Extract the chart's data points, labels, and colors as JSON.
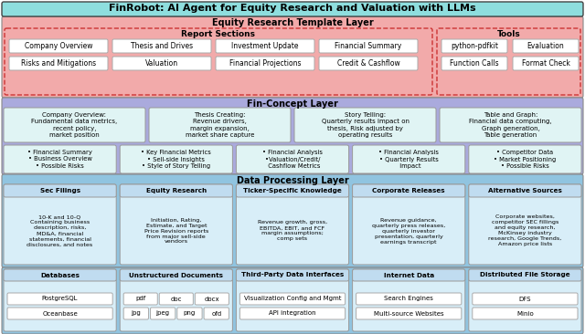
{
  "title": "FinRobot: AI Agent for Equity Research and Valuation with LLMs",
  "title_bg": "#8EDEDE",
  "title_text_color": "#000000",
  "layer1_bg": "#F2AAAA",
  "layer1_label": "Equity Research Template Layer",
  "layer1_sublabel1": "Report Sections",
  "layer1_sublabel2": "Tools",
  "layer1_report_items": [
    [
      "Company Overview",
      "Thesis and Drives",
      "Investment Update",
      "Financial Summary"
    ],
    [
      "Risks and Mitigations",
      "Valuation",
      "Financial Projections",
      "Credit & Cashflow"
    ]
  ],
  "layer1_tool_items": [
    [
      "python-pdfkit",
      "Evaluation"
    ],
    [
      "Function Calls",
      "Format Check"
    ]
  ],
  "layer2_bg": "#AAAADD",
  "layer2_label": "Fin-Concept Layer",
  "layer2_top_boxes": [
    "Company Overview:\nFundamental data metrics,\nrecent policy,\nmarket position",
    "Thesis Creating:\nRevenue drivers,\nmargin expansion,\nmarket share capture",
    "Story Telling:\nQuarterly results impact on\nthesis, Risk adjusted by\noperating results",
    "Table and Graph:\nFinancial data computing,\nGraph generation,\nTable generation"
  ],
  "layer2_bottom_boxes": [
    "• Financial Summary\n• Business Overview\n• Possible Risks",
    "• Key Financial Metrics\n• Sell-side Insights\n• Style of Story Telling",
    "• Financial Analysis\n•Valuation/Credit/\n  Cashflow Metrics",
    "• Financial Analysis\n• Quarterly Results\n  Impact",
    "• Competitor Data\n• Market Positioning\n• Possible Risks"
  ],
  "layer2_box_bg": "#E0F4F4",
  "layer3_bg": "#90C4E0",
  "layer3_label": "Data Processing Layer",
  "layer3_top_titles": [
    "Sec Filings",
    "Equity Research",
    "Ticker-Specific Knowledge",
    "Corporate Releases",
    "Alternative Sources"
  ],
  "layer3_top_content": [
    "10-K and 10-Q\nContaining business\ndescription, risks,\nMD&A, financial\nstatements, financial\ndisclosures, and notes",
    "Initiation, Rating,\nEstimate, and Target\nPrice Revision reports\nfrom major sell-side\nvendors",
    "Revenue growth, gross,\nEBITDA, EBIT, and FCF\nmargin assumptions;\ncomp sets",
    "Revenue guidance,\nquarterly press releases,\nquarterly investor\npresentation, quarterly\nearnings transcript",
    "Corporate websites,\ncompetitor SEC fillings\nand equity research,\nMcKinsey industry\nresearch, Google Trends,\nAmazon price lists"
  ],
  "layer3_box_bg": "#D8EEF8",
  "layer3_title_bg": "#C0DCF0",
  "layer4_bg": "#90C4E0",
  "layer4_sections": [
    {
      "label": "Databases",
      "type": "list",
      "items": [
        "PostgreSQL",
        "Oceanbase"
      ]
    },
    {
      "label": "Unstructured Documents",
      "type": "grid",
      "items": [
        [
          "pdf",
          "doc",
          "docx"
        ],
        [
          "jpg",
          "jpeg",
          "png",
          "ofd"
        ]
      ]
    },
    {
      "label": "Third-Party Data Interfaces",
      "type": "list",
      "items": [
        "Visualization Config and Mgmt",
        "API integration"
      ]
    },
    {
      "label": "Internet Data",
      "type": "list",
      "items": [
        "Search Engines",
        "Multi-source Websites"
      ]
    },
    {
      "label": "Distributed File Storage",
      "type": "list",
      "items": [
        "DFS",
        "Minio"
      ]
    }
  ],
  "layer4_box_bg": "#D8EEF8",
  "layer4_title_bg": "#C0DCF0"
}
